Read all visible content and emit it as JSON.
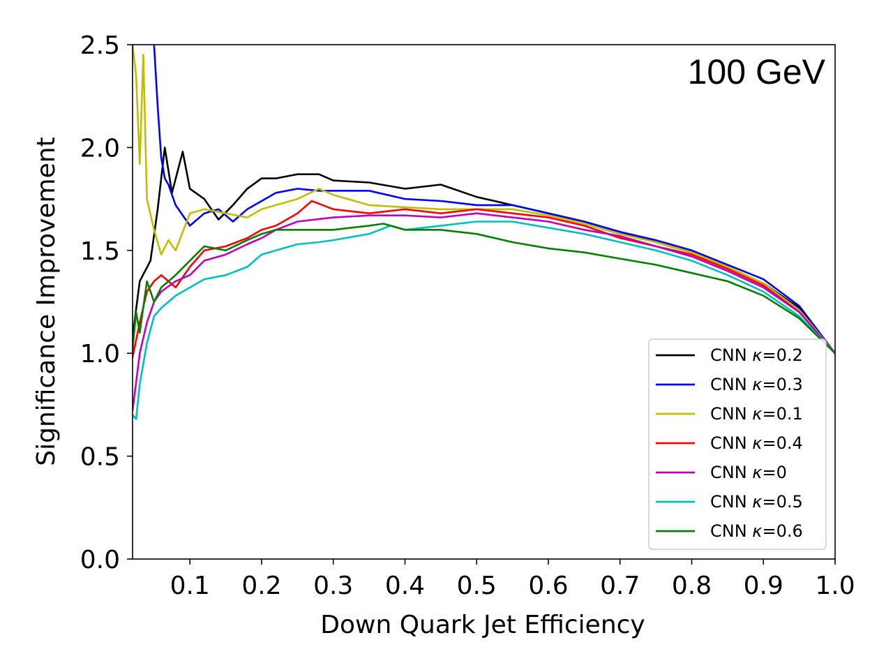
{
  "chart_data": {
    "type": "line",
    "annotation": "100 GeV",
    "xlabel": "Down Quark Jet Efficiency",
    "ylabel": "Significance Improvement",
    "xlim": [
      0.02,
      1.0
    ],
    "ylim": [
      0.0,
      2.5
    ],
    "xticks": [
      0.1,
      0.2,
      0.3,
      0.4,
      0.5,
      0.6,
      0.7,
      0.8,
      0.9,
      1.0
    ],
    "xtick_labels": [
      "0.1",
      "0.2",
      "0.3",
      "0.4",
      "0.5",
      "0.6",
      "0.7",
      "0.8",
      "0.9",
      "1.0"
    ],
    "yticks": [
      0.0,
      0.5,
      1.0,
      1.5,
      2.0,
      2.5
    ],
    "ytick_labels": [
      "0.0",
      "0.5",
      "1.0",
      "1.5",
      "2.0",
      "2.5"
    ],
    "legend_position": "lower-right",
    "series": [
      {
        "name": "CNN κ=0.2",
        "label_prefix": "CNN ",
        "kappa_symbol": "κ",
        "kappa_value": "=0.2",
        "color": "#000000",
        "x": [
          0.02,
          0.03,
          0.045,
          0.055,
          0.065,
          0.075,
          0.09,
          0.1,
          0.12,
          0.14,
          0.16,
          0.18,
          0.2,
          0.22,
          0.25,
          0.28,
          0.3,
          0.35,
          0.4,
          0.45,
          0.5,
          0.55,
          0.6,
          0.65,
          0.7,
          0.75,
          0.8,
          0.85,
          0.9,
          0.95,
          1.0
        ],
        "y": [
          1.08,
          1.35,
          1.45,
          1.7,
          2.0,
          1.78,
          1.98,
          1.8,
          1.75,
          1.65,
          1.72,
          1.8,
          1.85,
          1.85,
          1.87,
          1.87,
          1.84,
          1.83,
          1.8,
          1.82,
          1.76,
          1.72,
          1.68,
          1.64,
          1.59,
          1.54,
          1.49,
          1.42,
          1.34,
          1.22,
          1.0
        ]
      },
      {
        "name": "CNN κ=0.3",
        "label_prefix": "CNN ",
        "kappa_symbol": "κ",
        "kappa_value": "=0.3",
        "color": "#0000ff",
        "x": [
          0.05,
          0.055,
          0.06,
          0.065,
          0.07,
          0.08,
          0.1,
          0.12,
          0.14,
          0.16,
          0.18,
          0.2,
          0.22,
          0.25,
          0.28,
          0.3,
          0.35,
          0.4,
          0.45,
          0.5,
          0.55,
          0.6,
          0.65,
          0.7,
          0.75,
          0.8,
          0.85,
          0.9,
          0.95,
          1.0
        ],
        "y": [
          2.5,
          2.2,
          1.95,
          1.85,
          1.82,
          1.72,
          1.62,
          1.68,
          1.7,
          1.64,
          1.7,
          1.74,
          1.78,
          1.8,
          1.79,
          1.79,
          1.79,
          1.75,
          1.74,
          1.72,
          1.72,
          1.68,
          1.64,
          1.59,
          1.55,
          1.5,
          1.43,
          1.36,
          1.23,
          1.0
        ]
      },
      {
        "name": "CNN κ=0.1",
        "label_prefix": "CNN ",
        "kappa_symbol": "κ",
        "kappa_value": "=0.1",
        "color": "#bfbf00",
        "x": [
          0.02,
          0.025,
          0.03,
          0.035,
          0.04,
          0.05,
          0.06,
          0.07,
          0.08,
          0.1,
          0.12,
          0.15,
          0.18,
          0.2,
          0.22,
          0.25,
          0.28,
          0.3,
          0.35,
          0.4,
          0.45,
          0.5,
          0.55,
          0.6,
          0.65,
          0.7,
          0.75,
          0.8,
          0.85,
          0.9,
          0.95,
          1.0
        ],
        "y": [
          2.5,
          2.35,
          1.92,
          2.45,
          1.75,
          1.6,
          1.48,
          1.55,
          1.5,
          1.68,
          1.7,
          1.68,
          1.66,
          1.7,
          1.72,
          1.75,
          1.8,
          1.77,
          1.72,
          1.71,
          1.7,
          1.7,
          1.7,
          1.67,
          1.63,
          1.58,
          1.54,
          1.49,
          1.42,
          1.34,
          1.21,
          1.0
        ]
      },
      {
        "name": "CNN κ=0.4",
        "label_prefix": "CNN ",
        "kappa_symbol": "κ",
        "kappa_value": "=0.4",
        "color": "#ff0000",
        "x": [
          0.02,
          0.03,
          0.04,
          0.05,
          0.06,
          0.08,
          0.1,
          0.12,
          0.15,
          0.18,
          0.2,
          0.22,
          0.25,
          0.27,
          0.3,
          0.35,
          0.4,
          0.45,
          0.5,
          0.55,
          0.6,
          0.65,
          0.7,
          0.75,
          0.8,
          0.85,
          0.9,
          0.95,
          1.0
        ],
        "y": [
          0.98,
          1.15,
          1.3,
          1.35,
          1.38,
          1.32,
          1.42,
          1.5,
          1.52,
          1.56,
          1.6,
          1.62,
          1.68,
          1.74,
          1.7,
          1.68,
          1.7,
          1.68,
          1.7,
          1.68,
          1.66,
          1.62,
          1.56,
          1.52,
          1.48,
          1.41,
          1.33,
          1.2,
          1.0
        ]
      },
      {
        "name": "CNN κ=0",
        "label_prefix": "CNN ",
        "kappa_symbol": "κ",
        "kappa_value": "=0",
        "color": "#bf00bf",
        "x": [
          0.02,
          0.03,
          0.04,
          0.05,
          0.06,
          0.08,
          0.1,
          0.12,
          0.15,
          0.18,
          0.2,
          0.22,
          0.25,
          0.3,
          0.35,
          0.4,
          0.45,
          0.5,
          0.55,
          0.6,
          0.65,
          0.7,
          0.75,
          0.8,
          0.85,
          0.9,
          0.95,
          1.0
        ],
        "y": [
          0.72,
          1.0,
          1.15,
          1.25,
          1.3,
          1.35,
          1.38,
          1.45,
          1.48,
          1.53,
          1.56,
          1.6,
          1.64,
          1.66,
          1.67,
          1.67,
          1.66,
          1.68,
          1.66,
          1.64,
          1.6,
          1.57,
          1.52,
          1.47,
          1.4,
          1.32,
          1.2,
          1.0
        ]
      },
      {
        "name": "CNN κ=0.5",
        "label_prefix": "CNN ",
        "kappa_symbol": "κ",
        "kappa_value": "=0.5",
        "color": "#00bfbf",
        "x": [
          0.02,
          0.025,
          0.03,
          0.04,
          0.05,
          0.06,
          0.08,
          0.1,
          0.12,
          0.15,
          0.18,
          0.2,
          0.22,
          0.25,
          0.28,
          0.3,
          0.35,
          0.38,
          0.4,
          0.45,
          0.5,
          0.55,
          0.6,
          0.65,
          0.7,
          0.75,
          0.8,
          0.85,
          0.9,
          0.95,
          1.0
        ],
        "y": [
          0.7,
          0.68,
          0.85,
          1.05,
          1.18,
          1.22,
          1.28,
          1.32,
          1.36,
          1.38,
          1.42,
          1.48,
          1.5,
          1.53,
          1.54,
          1.55,
          1.58,
          1.62,
          1.6,
          1.62,
          1.64,
          1.64,
          1.61,
          1.58,
          1.54,
          1.5,
          1.45,
          1.38,
          1.3,
          1.18,
          1.0
        ]
      },
      {
        "name": "CNN κ=0.6",
        "label_prefix": "CNN ",
        "kappa_symbol": "κ",
        "kappa_value": "=0.6",
        "color": "#008000",
        "x": [
          0.02,
          0.025,
          0.03,
          0.04,
          0.05,
          0.06,
          0.08,
          0.1,
          0.12,
          0.15,
          0.18,
          0.2,
          0.22,
          0.25,
          0.3,
          0.35,
          0.37,
          0.4,
          0.45,
          0.5,
          0.55,
          0.6,
          0.65,
          0.7,
          0.75,
          0.8,
          0.85,
          0.9,
          0.95,
          1.0
        ],
        "y": [
          1.02,
          1.2,
          1.1,
          1.35,
          1.25,
          1.32,
          1.38,
          1.45,
          1.52,
          1.5,
          1.55,
          1.58,
          1.6,
          1.6,
          1.6,
          1.62,
          1.63,
          1.6,
          1.6,
          1.58,
          1.54,
          1.51,
          1.49,
          1.46,
          1.43,
          1.39,
          1.35,
          1.28,
          1.17,
          1.0
        ]
      }
    ]
  }
}
